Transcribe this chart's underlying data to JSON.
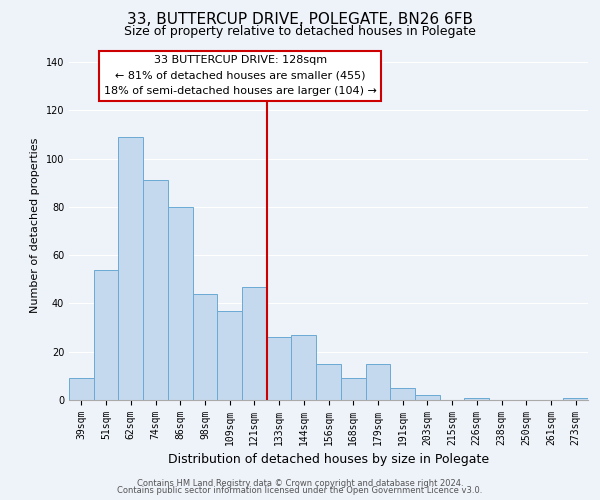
{
  "title": "33, BUTTERCUP DRIVE, POLEGATE, BN26 6FB",
  "subtitle": "Size of property relative to detached houses in Polegate",
  "xlabel": "Distribution of detached houses by size in Polegate",
  "ylabel": "Number of detached properties",
  "categories": [
    "39sqm",
    "51sqm",
    "62sqm",
    "74sqm",
    "86sqm",
    "98sqm",
    "109sqm",
    "121sqm",
    "133sqm",
    "144sqm",
    "156sqm",
    "168sqm",
    "179sqm",
    "191sqm",
    "203sqm",
    "215sqm",
    "226sqm",
    "238sqm",
    "250sqm",
    "261sqm",
    "273sqm"
  ],
  "values": [
    9,
    54,
    109,
    91,
    80,
    44,
    37,
    47,
    26,
    27,
    15,
    9,
    15,
    5,
    2,
    0,
    1,
    0,
    0,
    0,
    1
  ],
  "bar_color": "#c5d9ee",
  "bar_edge_color": "#6aaad4",
  "vline_color": "#cc0000",
  "vline_x_index": 7.5,
  "ylim": [
    0,
    145
  ],
  "yticks": [
    0,
    20,
    40,
    60,
    80,
    100,
    120,
    140
  ],
  "annotation_title": "33 BUTTERCUP DRIVE: 128sqm",
  "annotation_line1": "← 81% of detached houses are smaller (455)",
  "annotation_line2": "18% of semi-detached houses are larger (104) →",
  "annotation_box_color": "#ffffff",
  "annotation_box_edge": "#cc0000",
  "footer1": "Contains HM Land Registry data © Crown copyright and database right 2024.",
  "footer2": "Contains public sector information licensed under the Open Government Licence v3.0.",
  "background_color": "#eef2f9",
  "grid_color": "#ffffff",
  "title_fontsize": 11,
  "subtitle_fontsize": 9,
  "ylabel_fontsize": 8,
  "xlabel_fontsize": 9,
  "tick_fontsize": 7,
  "annot_fontsize": 8,
  "footer_fontsize": 6
}
